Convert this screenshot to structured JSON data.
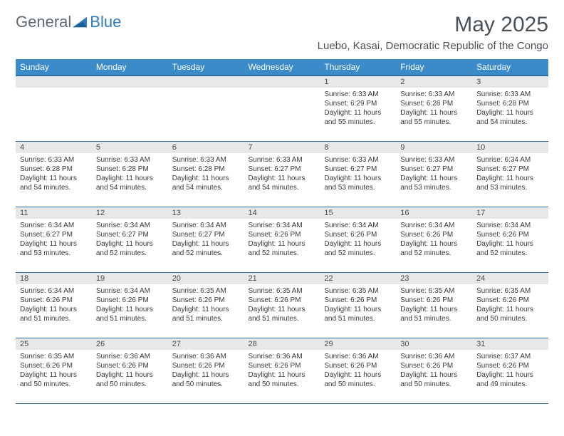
{
  "logo": {
    "text1": "General",
    "text2": "Blue"
  },
  "title": "May 2025",
  "location": "Luebo, Kasai, Democratic Republic of the Congo",
  "colors": {
    "header_bg": "#3b8bc9",
    "header_border": "#2f6fa3",
    "daynum_bg": "#e8e8e8",
    "logo_gray": "#5f6a72",
    "logo_blue": "#2f7bbf"
  },
  "day_headers": [
    "Sunday",
    "Monday",
    "Tuesday",
    "Wednesday",
    "Thursday",
    "Friday",
    "Saturday"
  ],
  "weeks": [
    [
      {
        "n": "",
        "lines": []
      },
      {
        "n": "",
        "lines": []
      },
      {
        "n": "",
        "lines": []
      },
      {
        "n": "",
        "lines": []
      },
      {
        "n": "1",
        "lines": [
          "Sunrise: 6:33 AM",
          "Sunset: 6:29 PM",
          "Daylight: 11 hours and 55 minutes."
        ]
      },
      {
        "n": "2",
        "lines": [
          "Sunrise: 6:33 AM",
          "Sunset: 6:28 PM",
          "Daylight: 11 hours and 55 minutes."
        ]
      },
      {
        "n": "3",
        "lines": [
          "Sunrise: 6:33 AM",
          "Sunset: 6:28 PM",
          "Daylight: 11 hours and 54 minutes."
        ]
      }
    ],
    [
      {
        "n": "4",
        "lines": [
          "Sunrise: 6:33 AM",
          "Sunset: 6:28 PM",
          "Daylight: 11 hours and 54 minutes."
        ]
      },
      {
        "n": "5",
        "lines": [
          "Sunrise: 6:33 AM",
          "Sunset: 6:28 PM",
          "Daylight: 11 hours and 54 minutes."
        ]
      },
      {
        "n": "6",
        "lines": [
          "Sunrise: 6:33 AM",
          "Sunset: 6:28 PM",
          "Daylight: 11 hours and 54 minutes."
        ]
      },
      {
        "n": "7",
        "lines": [
          "Sunrise: 6:33 AM",
          "Sunset: 6:27 PM",
          "Daylight: 11 hours and 54 minutes."
        ]
      },
      {
        "n": "8",
        "lines": [
          "Sunrise: 6:33 AM",
          "Sunset: 6:27 PM",
          "Daylight: 11 hours and 53 minutes."
        ]
      },
      {
        "n": "9",
        "lines": [
          "Sunrise: 6:33 AM",
          "Sunset: 6:27 PM",
          "Daylight: 11 hours and 53 minutes."
        ]
      },
      {
        "n": "10",
        "lines": [
          "Sunrise: 6:34 AM",
          "Sunset: 6:27 PM",
          "Daylight: 11 hours and 53 minutes."
        ]
      }
    ],
    [
      {
        "n": "11",
        "lines": [
          "Sunrise: 6:34 AM",
          "Sunset: 6:27 PM",
          "Daylight: 11 hours and 53 minutes."
        ]
      },
      {
        "n": "12",
        "lines": [
          "Sunrise: 6:34 AM",
          "Sunset: 6:27 PM",
          "Daylight: 11 hours and 52 minutes."
        ]
      },
      {
        "n": "13",
        "lines": [
          "Sunrise: 6:34 AM",
          "Sunset: 6:27 PM",
          "Daylight: 11 hours and 52 minutes."
        ]
      },
      {
        "n": "14",
        "lines": [
          "Sunrise: 6:34 AM",
          "Sunset: 6:26 PM",
          "Daylight: 11 hours and 52 minutes."
        ]
      },
      {
        "n": "15",
        "lines": [
          "Sunrise: 6:34 AM",
          "Sunset: 6:26 PM",
          "Daylight: 11 hours and 52 minutes."
        ]
      },
      {
        "n": "16",
        "lines": [
          "Sunrise: 6:34 AM",
          "Sunset: 6:26 PM",
          "Daylight: 11 hours and 52 minutes."
        ]
      },
      {
        "n": "17",
        "lines": [
          "Sunrise: 6:34 AM",
          "Sunset: 6:26 PM",
          "Daylight: 11 hours and 52 minutes."
        ]
      }
    ],
    [
      {
        "n": "18",
        "lines": [
          "Sunrise: 6:34 AM",
          "Sunset: 6:26 PM",
          "Daylight: 11 hours and 51 minutes."
        ]
      },
      {
        "n": "19",
        "lines": [
          "Sunrise: 6:34 AM",
          "Sunset: 6:26 PM",
          "Daylight: 11 hours and 51 minutes."
        ]
      },
      {
        "n": "20",
        "lines": [
          "Sunrise: 6:35 AM",
          "Sunset: 6:26 PM",
          "Daylight: 11 hours and 51 minutes."
        ]
      },
      {
        "n": "21",
        "lines": [
          "Sunrise: 6:35 AM",
          "Sunset: 6:26 PM",
          "Daylight: 11 hours and 51 minutes."
        ]
      },
      {
        "n": "22",
        "lines": [
          "Sunrise: 6:35 AM",
          "Sunset: 6:26 PM",
          "Daylight: 11 hours and 51 minutes."
        ]
      },
      {
        "n": "23",
        "lines": [
          "Sunrise: 6:35 AM",
          "Sunset: 6:26 PM",
          "Daylight: 11 hours and 51 minutes."
        ]
      },
      {
        "n": "24",
        "lines": [
          "Sunrise: 6:35 AM",
          "Sunset: 6:26 PM",
          "Daylight: 11 hours and 50 minutes."
        ]
      }
    ],
    [
      {
        "n": "25",
        "lines": [
          "Sunrise: 6:35 AM",
          "Sunset: 6:26 PM",
          "Daylight: 11 hours and 50 minutes."
        ]
      },
      {
        "n": "26",
        "lines": [
          "Sunrise: 6:36 AM",
          "Sunset: 6:26 PM",
          "Daylight: 11 hours and 50 minutes."
        ]
      },
      {
        "n": "27",
        "lines": [
          "Sunrise: 6:36 AM",
          "Sunset: 6:26 PM",
          "Daylight: 11 hours and 50 minutes."
        ]
      },
      {
        "n": "28",
        "lines": [
          "Sunrise: 6:36 AM",
          "Sunset: 6:26 PM",
          "Daylight: 11 hours and 50 minutes."
        ]
      },
      {
        "n": "29",
        "lines": [
          "Sunrise: 6:36 AM",
          "Sunset: 6:26 PM",
          "Daylight: 11 hours and 50 minutes."
        ]
      },
      {
        "n": "30",
        "lines": [
          "Sunrise: 6:36 AM",
          "Sunset: 6:26 PM",
          "Daylight: 11 hours and 50 minutes."
        ]
      },
      {
        "n": "31",
        "lines": [
          "Sunrise: 6:37 AM",
          "Sunset: 6:26 PM",
          "Daylight: 11 hours and 49 minutes."
        ]
      }
    ]
  ]
}
